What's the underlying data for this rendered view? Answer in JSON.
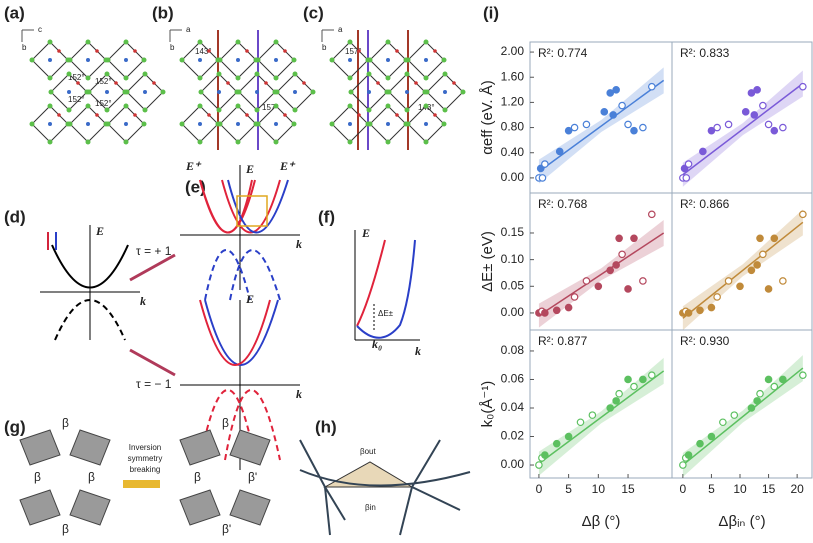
{
  "panels": {
    "a": {
      "label": "(a)",
      "axis": [
        "c",
        "b"
      ],
      "angles": [
        "152°",
        "152°",
        "152°",
        "152°"
      ]
    },
    "b": {
      "label": "(b)",
      "axis": [
        "a",
        "b"
      ],
      "angles": [
        "143°",
        "157°"
      ]
    },
    "c": {
      "label": "(c)",
      "axis": [
        "a",
        "b"
      ],
      "angles": [
        "157°",
        "143°"
      ]
    },
    "d": {
      "label": "(d)",
      "e": "E",
      "k": "k"
    },
    "e": {
      "label": "(e)",
      "e_plus": "E⁺",
      "tau_up": "τ = + 1",
      "tau_down": "τ = − 1",
      "e": "E",
      "k": "k"
    },
    "f": {
      "label": "(f)",
      "e": "E",
      "k": "k",
      "delta": "ΔE±",
      "k0": "k₀"
    },
    "g": {
      "label": "(g)",
      "arrow_text": [
        "Inversion",
        "symmetry",
        "breaking"
      ],
      "beta": "β",
      "beta_prime": "β'"
    },
    "h": {
      "label": "(h)",
      "beta_out": "βout",
      "beta_in": "βin"
    },
    "i": {
      "label": "(i)"
    }
  },
  "chart_data": [
    {
      "type": "scatter",
      "annotation": "R²: 0.774",
      "y_label": "αeff (eV. Å)",
      "color": "#4a80d8",
      "xlim": [
        -1.5,
        22.4
      ],
      "ylim": [
        -0.24,
        2.16
      ],
      "yticks": [
        {
          "value": 0,
          "label": "0.00"
        },
        {
          "value": 0.4,
          "label": "0.40"
        },
        {
          "value": 0.8,
          "label": "0.80"
        },
        {
          "value": 1.2,
          "label": "1.20"
        },
        {
          "value": 1.6,
          "label": "1.60"
        },
        {
          "value": 2,
          "label": "2.00"
        }
      ],
      "x": [
        0,
        0.3,
        0.6,
        1,
        3.5,
        5,
        6,
        8,
        11,
        12,
        12.5,
        13,
        14,
        15,
        16,
        17.5,
        19
      ],
      "values": [
        0,
        0.15,
        0,
        0.22,
        0.42,
        0.75,
        0.8,
        0.85,
        1.05,
        1.35,
        1.0,
        1.4,
        1.15,
        0.85,
        0.75,
        0.8,
        1.45
      ],
      "hollow": [
        true,
        false,
        true,
        true,
        false,
        false,
        true,
        true,
        false,
        false,
        false,
        false,
        true,
        true,
        false,
        true,
        true
      ],
      "fit_x": [
        0,
        21
      ],
      "fit_y": [
        0.1,
        1.55
      ]
    },
    {
      "type": "scatter",
      "annotation": "R²: 0.833",
      "color": "#7a5ad8",
      "xlim": [
        -1.9,
        22.6
      ],
      "ylim": [
        -0.24,
        2.16
      ],
      "x": [
        0,
        0.3,
        0.6,
        1,
        3.5,
        5,
        6,
        8,
        11,
        12,
        12.5,
        13,
        14,
        15,
        16,
        17.5,
        21
      ],
      "values": [
        0,
        0.15,
        0,
        0.22,
        0.42,
        0.75,
        0.8,
        0.85,
        1.05,
        1.35,
        1.0,
        1.4,
        1.15,
        0.85,
        0.75,
        0.8,
        1.45
      ],
      "hollow": [
        true,
        false,
        true,
        true,
        false,
        false,
        true,
        true,
        false,
        false,
        false,
        false,
        true,
        true,
        false,
        true,
        true
      ],
      "fit_x": [
        0,
        21
      ],
      "fit_y": [
        0.05,
        1.5
      ]
    },
    {
      "type": "scatter",
      "annotation": "R²: 0.768",
      "y_label": "ΔE± (eV)",
      "color": "#b4485e",
      "xlim": [
        -1.5,
        22.4
      ],
      "ylim": [
        -0.032,
        0.225
      ],
      "yticks": [
        {
          "value": 0,
          "label": "0.00"
        },
        {
          "value": 0.05,
          "label": "0.05"
        },
        {
          "value": 0.1,
          "label": "0.10"
        },
        {
          "value": 0.15,
          "label": "0.15"
        }
      ],
      "x": [
        0,
        0.5,
        1,
        3,
        5,
        6,
        8,
        10,
        12,
        13,
        13.5,
        14,
        15,
        16,
        17.5,
        19
      ],
      "values": [
        0,
        0.003,
        0,
        0.005,
        0.01,
        0.03,
        0.06,
        0.05,
        0.08,
        0.09,
        0.14,
        0.11,
        0.045,
        0.14,
        0.06,
        0.185
      ],
      "hollow": [
        false,
        true,
        false,
        false,
        false,
        true,
        true,
        false,
        false,
        false,
        false,
        true,
        false,
        false,
        true,
        true
      ],
      "fit_x": [
        0,
        21
      ],
      "fit_y": [
        -0.005,
        0.15
      ]
    },
    {
      "type": "scatter",
      "annotation": "R²: 0.866",
      "color": "#c08a3a",
      "xlim": [
        -1.9,
        22.6
      ],
      "ylim": [
        -0.032,
        0.225
      ],
      "x": [
        0,
        0.5,
        1,
        3,
        5,
        6,
        8,
        10,
        12,
        13,
        13.5,
        14,
        15,
        16,
        17.5,
        21
      ],
      "values": [
        0,
        0.003,
        0,
        0.005,
        0.01,
        0.03,
        0.06,
        0.05,
        0.08,
        0.09,
        0.14,
        0.11,
        0.045,
        0.14,
        0.06,
        0.185
      ],
      "hollow": [
        false,
        true,
        false,
        false,
        false,
        true,
        true,
        false,
        false,
        false,
        false,
        true,
        false,
        false,
        true,
        true
      ],
      "fit_x": [
        0,
        21
      ],
      "fit_y": [
        -0.01,
        0.17
      ]
    },
    {
      "type": "scatter",
      "annotation": "R²: 0.877",
      "y_label": "k₀(Å⁻¹)",
      "x_label": "Δβ (°)",
      "color": "#5cc060",
      "xlim": [
        -1.5,
        22.4
      ],
      "ylim": [
        -0.0091,
        0.0947
      ],
      "yticks": [
        {
          "value": 0,
          "label": "0.00"
        },
        {
          "value": 0.02,
          "label": "0.02"
        },
        {
          "value": 0.04,
          "label": "0.04"
        },
        {
          "value": 0.06,
          "label": "0.06"
        },
        {
          "value": 0.08,
          "label": "0.08"
        }
      ],
      "xticks": [
        0,
        5,
        10,
        15
      ],
      "x": [
        0,
        0.5,
        1,
        3,
        5,
        7,
        9,
        12,
        13,
        13.5,
        15,
        16,
        17.5,
        19
      ],
      "values": [
        0,
        0.005,
        0.007,
        0.015,
        0.02,
        0.03,
        0.035,
        0.04,
        0.045,
        0.05,
        0.06,
        0.055,
        0.06,
        0.063
      ],
      "hollow": [
        true,
        true,
        false,
        false,
        false,
        true,
        true,
        false,
        false,
        true,
        false,
        true,
        false,
        true
      ],
      "fit_x": [
        0,
        21
      ],
      "fit_y": [
        0.001,
        0.066
      ]
    },
    {
      "type": "scatter",
      "annotation": "R²: 0.930",
      "x_label": "Δβᵢₙ (°)",
      "color": "#5cc060",
      "xlim": [
        -1.9,
        22.6
      ],
      "ylim": [
        -0.0091,
        0.0947
      ],
      "xticks": [
        0,
        5,
        10,
        15,
        20
      ],
      "x": [
        0,
        0.5,
        1,
        3,
        5,
        7,
        9,
        12,
        13,
        13.5,
        15,
        16,
        17.5,
        21
      ],
      "values": [
        0,
        0.005,
        0.007,
        0.015,
        0.02,
        0.03,
        0.035,
        0.04,
        0.045,
        0.05,
        0.06,
        0.055,
        0.06,
        0.063
      ],
      "hollow": [
        true,
        true,
        false,
        false,
        false,
        true,
        true,
        false,
        false,
        true,
        false,
        true,
        false,
        true
      ],
      "fit_x": [
        0,
        21
      ],
      "fit_y": [
        0.0,
        0.068
      ]
    }
  ]
}
